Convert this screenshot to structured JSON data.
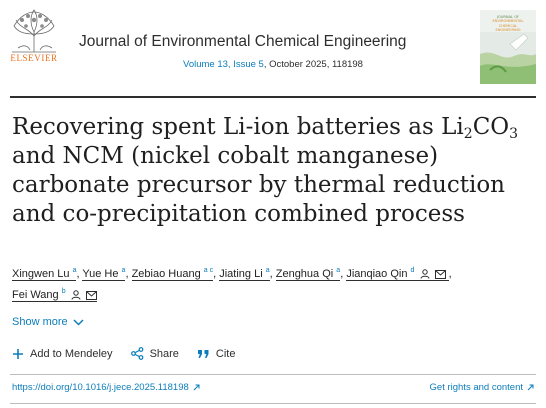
{
  "header": {
    "publisher_logo_text": "ELSEVIER",
    "journal_name": "Journal of Environmental Chemical Engineering",
    "volume_text": "Volume 13, Issue 5",
    "issue_date_text": ", October 2025, 118198",
    "cover_lines": [
      "JOURNAL OF",
      "ENVIRONMENTAL",
      "CHEMICAL",
      "ENGINEERING"
    ]
  },
  "article": {
    "title_line1_before": "Recovering spent Li-ion batteries as Li",
    "title_sub1": "2",
    "title_mid": "CO",
    "title_sub2": "3",
    "title_rest": " and NCM (nickel cobalt manganese) carbonate precursor by thermal reduction and co-precipitation combined process"
  },
  "authors": [
    {
      "name": "Xingwen Lu",
      "aff": "a"
    },
    {
      "name": "Yue He",
      "aff": "a"
    },
    {
      "name": "Zebiao Huang",
      "aff": "a c"
    },
    {
      "name": "Jiating Li",
      "aff": "a"
    },
    {
      "name": "Zenghua Qi",
      "aff": "a"
    },
    {
      "name": "Jianqiao Qin",
      "aff": "d"
    },
    {
      "name": "Fei Wang",
      "aff": "b"
    }
  ],
  "show_more": "Show more",
  "actions": {
    "add_mendeley": "Add to Mendeley",
    "share": "Share",
    "cite": "Cite"
  },
  "footer": {
    "doi": "https://doi.org/10.1016/j.jece.2025.118198",
    "rights": "Get rights and content"
  },
  "colors": {
    "link": "#0c7dbb",
    "elsevier_orange": "#e9711c",
    "text": "#1f1f1f"
  }
}
